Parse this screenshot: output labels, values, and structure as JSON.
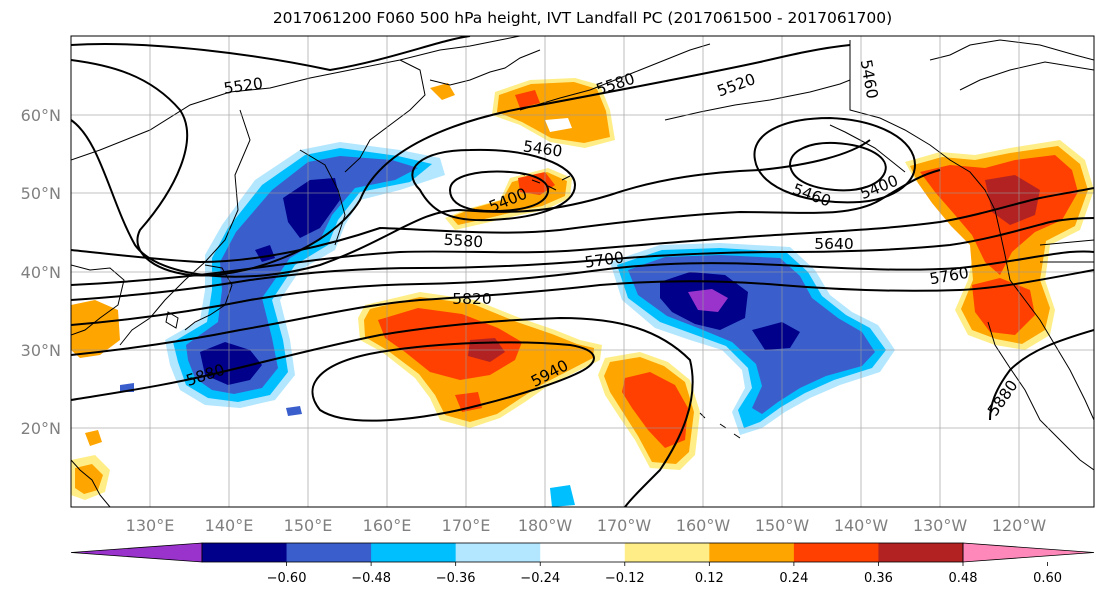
{
  "title": "2017061200 F060 500 hPa height, IVT Landfall PC (2017061500 - 2017061700)",
  "lat_labels": [
    "20°N",
    "30°N",
    "40°N",
    "50°N",
    "60°N"
  ],
  "lon_labels": [
    "130°E",
    "140°E",
    "150°E",
    "160°E",
    "170°E",
    "180°W",
    "170°W",
    "160°W",
    "150°W",
    "140°W",
    "130°W",
    "120°W"
  ],
  "contour_labels": {
    "l5520a": "5520",
    "l5520b": "5520",
    "l5580a": "5580",
    "l5580b": "5580",
    "l5460a": "5460",
    "l5460b": "5460",
    "l5460c": "5460",
    "l5400a": "5400",
    "l5400b": "5400",
    "l5640": "5640",
    "l5700": "5700",
    "l5760": "5760",
    "l5820": "5820",
    "l5880a": "5880",
    "l5880b": "5880",
    "l5940": "5940"
  },
  "colorbar": {
    "ticks": [
      "−0.60",
      "−0.48",
      "−0.36",
      "−0.24",
      "−0.12",
      "0.12",
      "0.24",
      "0.36",
      "0.48",
      "0.60"
    ],
    "colors": [
      "#9933cc",
      "#00008b",
      "#3a5fcd",
      "#00bfff",
      "#b3e6ff",
      "#ffffff",
      "#ffee88",
      "#ffa500",
      "#ff4000",
      "#b22222",
      "#ff88bb"
    ]
  },
  "palette": {
    "n3": "#3a5fcd",
    "n4": "#00008b",
    "n5": "#9933cc",
    "n2": "#00bfff",
    "n1": "#b3e6ff",
    "p1": "#ffee88",
    "p2": "#ffa500",
    "p3": "#ff4000",
    "p4": "#b22222"
  }
}
